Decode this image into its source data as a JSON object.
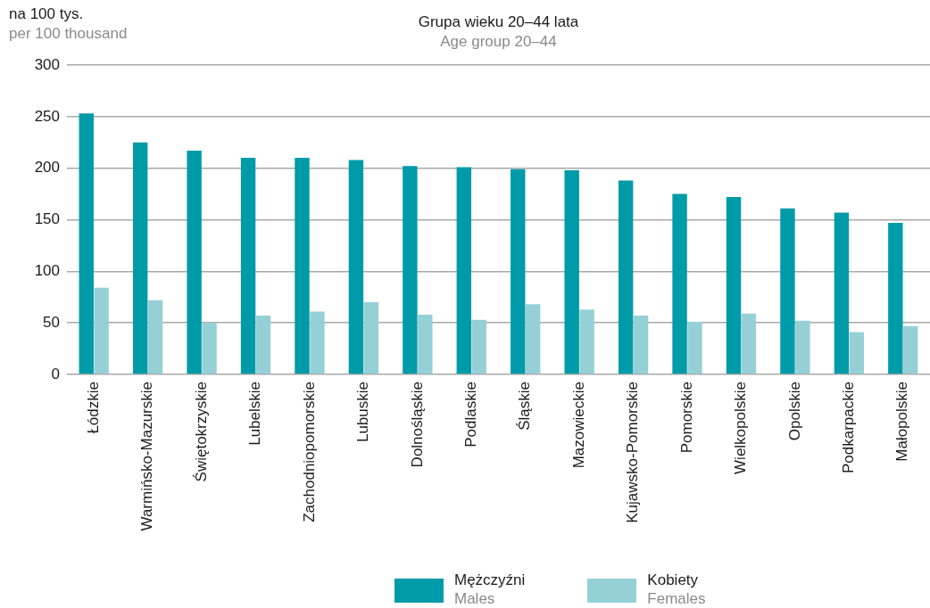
{
  "chart_data": {
    "type": "bar",
    "title": "Grupa wieku 20–44 lata",
    "subtitle": "Age group 20–44",
    "ylabel": "na 100 tys.\nper 100 thousand",
    "categories": [
      "Łódzkie",
      "Warmińsko-Mazurskie",
      "Świętokrzyskie",
      "Lubelskie",
      "Zachodniopomorskie",
      "Lubuskie",
      "Dolnośląskie",
      "Podlaskie",
      "Śląskie",
      "Mazowieckie",
      "Kujawsko-Pomorskie",
      "Pomorskie",
      "Wielkopolskie",
      "Opolskie",
      "Podkarpackie",
      "Małopolskie"
    ],
    "series": [
      {
        "name": "Mężczyźni\nMales",
        "color": "#009ba8",
        "values": [
          253,
          225,
          217,
          210,
          210,
          208,
          202,
          201,
          199,
          198,
          188,
          175,
          172,
          161,
          157,
          147
        ]
      },
      {
        "name": "Kobiety\nFemales",
        "color": "#96d0d7",
        "values": [
          84,
          72,
          50,
          57,
          61,
          70,
          58,
          53,
          68,
          63,
          57,
          51,
          59,
          52,
          41,
          47
        ]
      }
    ],
    "ylim": [
      0,
      300
    ],
    "yticks": [
      0,
      50,
      100,
      150,
      200,
      250,
      300
    ],
    "grid": "y",
    "legend": "bottom"
  }
}
